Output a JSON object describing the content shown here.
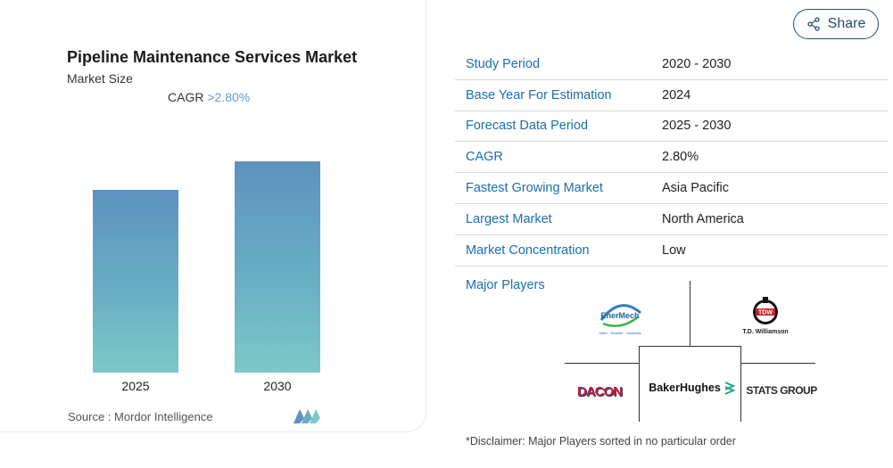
{
  "chart": {
    "title": "Pipeline Maintenance Services Market",
    "subtitle": "Market Size",
    "cagr_label": "CAGR",
    "cagr_value": ">2.80%",
    "source": "Source :  Mordor Intelligence"
  },
  "chart_data": {
    "type": "bar",
    "title": "Pipeline Maintenance Services Market",
    "categories": [
      "2025",
      "2030"
    ],
    "values": [
      0.867,
      1.0
    ],
    "value_note": "relative bar heights; no axis values printed",
    "colors": [
      "#5d92bf",
      "#7dc8c9"
    ],
    "grid": false
  },
  "share": {
    "label": "Share"
  },
  "table": [
    {
      "key": "Study Period",
      "value": "2020 - 2030"
    },
    {
      "key": "Base Year For Estimation",
      "value": "2024"
    },
    {
      "key": "Forecast Data Period",
      "value": "2025 - 2030"
    },
    {
      "key": "CAGR",
      "value": "2.80%"
    },
    {
      "key": "Fastest Growing Market",
      "value": "Asia Pacific"
    },
    {
      "key": "Largest Market",
      "value": "North America"
    },
    {
      "key": "Market Concentration",
      "value": "Low"
    }
  ],
  "players": {
    "label": "Major Players",
    "logos": {
      "enermech": "EnerMech",
      "enermech_tagline": "Safer · Smarter · Solutions",
      "tdw": "TDW",
      "tdw_name": "T.D. Williamson",
      "dacon": "DACON",
      "bakerhughes": "BakerHughes",
      "stats": "STATS GROUP"
    }
  },
  "disclaimer": "*Disclaimer: Major Players sorted in no particular order",
  "colors": {
    "link": "#1a6fb0",
    "bar_top": "#5d92bf",
    "bar_bottom": "#7dc8c9",
    "share_border": "#1e4f6f"
  }
}
